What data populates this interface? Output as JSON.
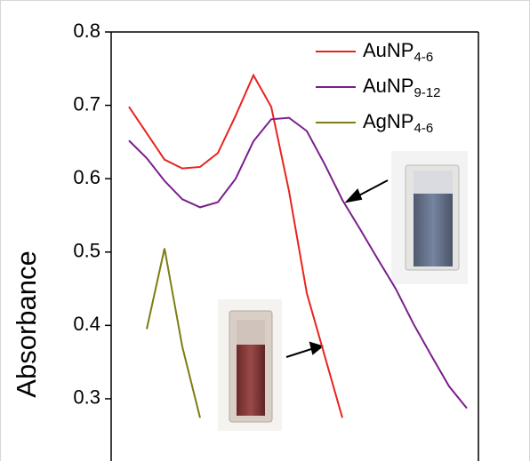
{
  "chart_data": {
    "type": "line",
    "y_label": "Absorbance",
    "categories": [
      null,
      null,
      null,
      null,
      null,
      null,
      null,
      null,
      null,
      null,
      null,
      null,
      null,
      null,
      null,
      null,
      null,
      null,
      null,
      null
    ],
    "series": [
      {
        "name": "AuNP4-6",
        "color": "#e8231f",
        "values": [
          0.698,
          0.662,
          0.626,
          0.614,
          0.616,
          0.635,
          0.686,
          0.741,
          0.698,
          0.583,
          0.444,
          0.359,
          0.274,
          null,
          null,
          null,
          null,
          null,
          null,
          null
        ]
      },
      {
        "name": "AuNP9-12",
        "color": "#7a1f8c",
        "values": [
          0.652,
          0.628,
          0.597,
          0.572,
          0.561,
          0.568,
          0.6,
          0.651,
          0.681,
          0.683,
          0.665,
          0.62,
          0.571,
          0.531,
          0.49,
          0.45,
          0.402,
          0.359,
          0.317,
          0.287
        ]
      },
      {
        "name": "AgNP4-6",
        "color": "#7d7d12",
        "values": [
          null,
          0.395,
          0.505,
          0.371,
          0.274,
          null,
          null,
          null,
          null,
          null,
          null,
          null,
          null,
          null,
          null,
          null,
          null,
          null,
          null,
          null
        ]
      }
    ],
    "ylim": [
      0.22,
      0.8
    ],
    "yticks": [
      0.3,
      0.4,
      0.5,
      0.6,
      0.7,
      0.8
    ],
    "legend": "upper-right"
  }
}
